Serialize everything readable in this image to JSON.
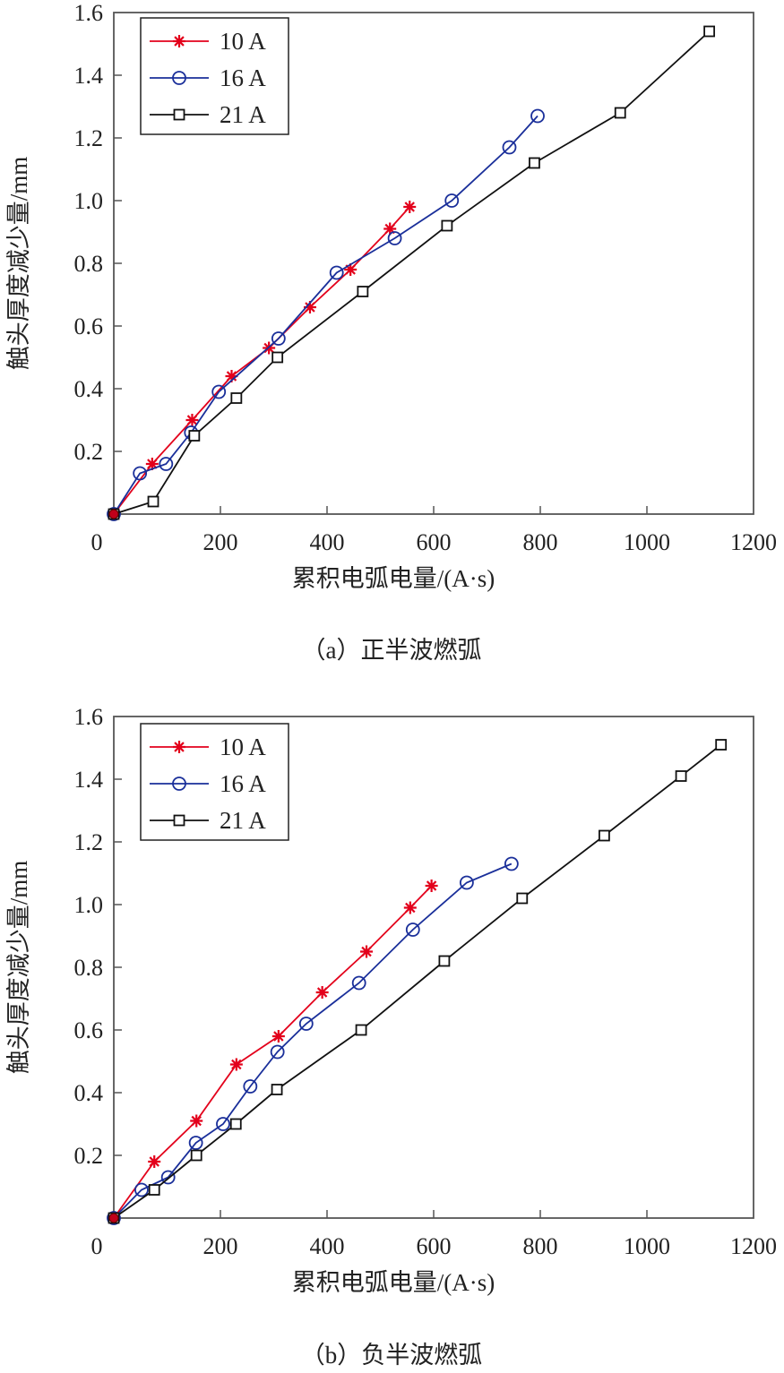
{
  "chart_data": [
    {
      "type": "line",
      "caption": "（a）正半波燃弧",
      "xlabel": "累积电弧电量/(A·s)",
      "ylabel": "触头厚度减少量/mm",
      "xlim": [
        0,
        1200
      ],
      "ylim": [
        0,
        1.6
      ],
      "xticks": [
        "0",
        "200",
        "400",
        "600",
        "800",
        "1000",
        "1200"
      ],
      "yticks": [
        "0.2",
        "0.4",
        "0.6",
        "0.8",
        "1.0",
        "1.2",
        "1.4",
        "1.6"
      ],
      "grid": false,
      "legend_position": "top-left",
      "series": [
        {
          "name": "10 A",
          "color": "#e3001b",
          "marker": "asterisk",
          "x": [
            0,
            72,
            147,
            221,
            291,
            368,
            444,
            518,
            555
          ],
          "y": [
            0,
            0.16,
            0.3,
            0.44,
            0.53,
            0.66,
            0.78,
            0.91,
            0.98
          ]
        },
        {
          "name": "16 A",
          "color": "#1a2f9a",
          "marker": "circle",
          "x": [
            0,
            49,
            98,
            145,
            197,
            309,
            418,
            527,
            634,
            742,
            795
          ],
          "y": [
            0,
            0.13,
            0.16,
            0.26,
            0.39,
            0.56,
            0.77,
            0.88,
            1.0,
            1.17,
            1.27
          ]
        },
        {
          "name": "21 A",
          "color": "#111111",
          "marker": "square",
          "x": [
            0,
            74,
            151,
            230,
            307,
            467,
            625,
            789,
            950,
            1117
          ],
          "y": [
            0,
            0.04,
            0.25,
            0.37,
            0.5,
            0.71,
            0.92,
            1.12,
            1.28,
            1.54
          ]
        }
      ]
    },
    {
      "type": "line",
      "caption": "（b）负半波燃弧",
      "xlabel": "累积电弧电量/(A·s)",
      "ylabel": "触头厚度减少量/mm",
      "xlim": [
        0,
        1200
      ],
      "ylim": [
        0,
        1.6
      ],
      "xticks": [
        "0",
        "200",
        "400",
        "600",
        "800",
        "1000",
        "1200"
      ],
      "yticks": [
        "0.2",
        "0.4",
        "0.6",
        "0.8",
        "1.0",
        "1.2",
        "1.4",
        "1.6"
      ],
      "grid": false,
      "legend_position": "top-left",
      "series": [
        {
          "name": "10 A",
          "color": "#e3001b",
          "marker": "asterisk",
          "x": [
            0,
            76,
            155,
            230,
            309,
            391,
            474,
            556,
            596
          ],
          "y": [
            0,
            0.18,
            0.31,
            0.49,
            0.58,
            0.72,
            0.85,
            0.99,
            1.06
          ]
        },
        {
          "name": "16 A",
          "color": "#1a2f9a",
          "marker": "circle",
          "x": [
            0,
            52,
            102,
            154,
            205,
            256,
            307,
            361,
            460,
            561,
            662,
            746
          ],
          "y": [
            0,
            0.09,
            0.13,
            0.24,
            0.3,
            0.42,
            0.53,
            0.62,
            0.75,
            0.92,
            1.07,
            1.13
          ]
        },
        {
          "name": "21 A",
          "color": "#111111",
          "marker": "square",
          "x": [
            0,
            76,
            155,
            229,
            306,
            464,
            620,
            766,
            920,
            1064,
            1139
          ],
          "y": [
            0,
            0.09,
            0.2,
            0.3,
            0.41,
            0.6,
            0.82,
            1.02,
            1.22,
            1.41,
            1.51
          ]
        }
      ]
    }
  ]
}
